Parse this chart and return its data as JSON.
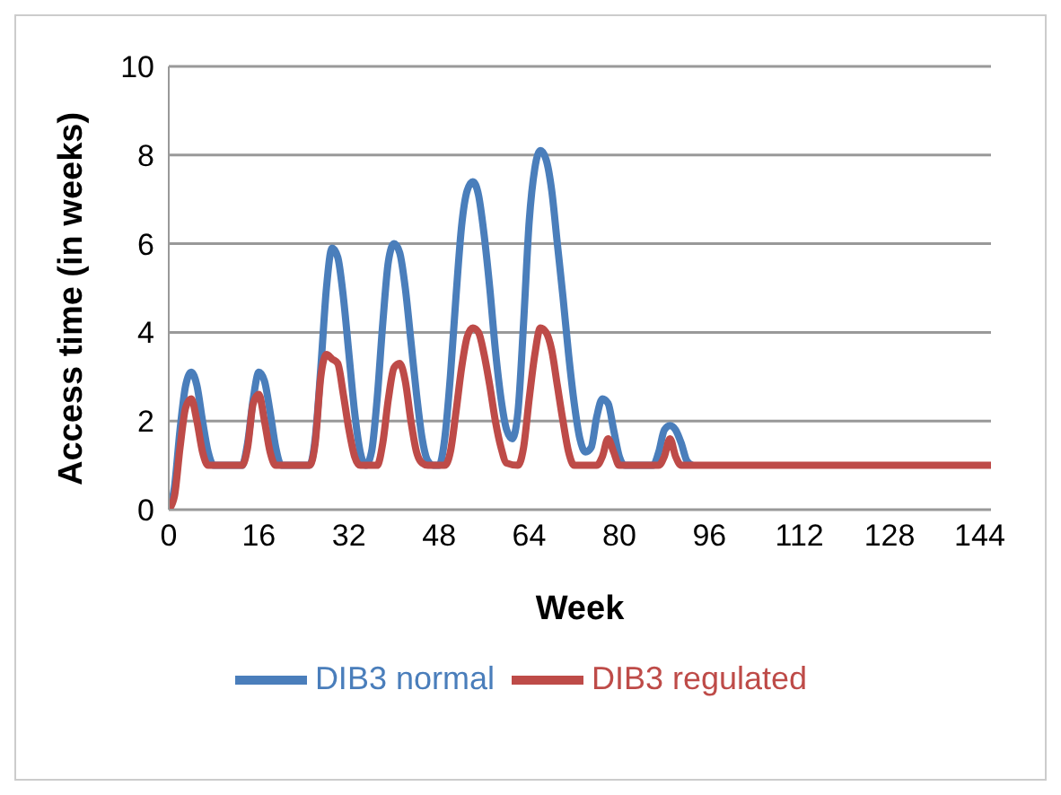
{
  "chart_data": {
    "type": "line",
    "xlabel": "Week",
    "ylabel": "Access time (in weeks)",
    "xlim": [
      0,
      146
    ],
    "xticks": [
      0,
      16,
      32,
      48,
      64,
      80,
      96,
      112,
      128,
      144
    ],
    "ylim": [
      0,
      10
    ],
    "yticks": [
      0,
      2,
      4,
      6,
      8,
      10
    ],
    "grid": "y",
    "legend": "bottom",
    "marker": "none",
    "line_style": "solid",
    "series": [
      {
        "name": "DIB3 normal",
        "color": "#4a7ebb",
        "x": [
          0,
          1,
          2,
          3,
          4,
          5,
          6,
          7,
          8,
          13,
          14,
          15,
          16,
          17,
          18,
          19,
          20,
          25,
          26,
          27,
          28,
          29,
          30,
          31,
          32,
          33,
          34,
          35,
          36,
          37,
          38,
          39,
          40,
          41,
          42,
          43,
          44,
          45,
          46,
          47,
          48,
          49,
          50,
          51,
          52,
          53,
          54,
          55,
          56,
          57,
          58,
          59,
          60,
          61,
          62,
          63,
          64,
          65,
          66,
          67,
          68,
          69,
          70,
          71,
          72,
          73,
          74,
          75,
          76,
          77,
          78,
          79,
          80,
          81,
          82,
          86,
          87,
          88,
          89,
          90,
          91,
          92,
          93
        ],
        "values": [
          0,
          0.5,
          1.8,
          2.8,
          3.1,
          2.8,
          2.0,
          1.3,
          1,
          1,
          1.5,
          2.5,
          3.1,
          2.9,
          2.2,
          1.4,
          1,
          1,
          1.6,
          3.2,
          5.0,
          5.9,
          5.7,
          4.8,
          3.5,
          2.2,
          1.3,
          1,
          1.3,
          2.5,
          4.2,
          5.6,
          6.0,
          5.8,
          5.0,
          3.8,
          2.6,
          1.6,
          1.1,
          1,
          1,
          1.6,
          3.0,
          4.8,
          6.4,
          7.2,
          7.4,
          7.1,
          6.2,
          5.0,
          3.6,
          2.5,
          1.8,
          1.6,
          2.2,
          4.2,
          6.5,
          7.7,
          8.1,
          7.9,
          7.2,
          6.0,
          4.8,
          3.5,
          2.4,
          1.6,
          1.3,
          1.4,
          2.1,
          2.5,
          2.4,
          1.8,
          1.2,
          1,
          1,
          1,
          1.3,
          1.8,
          1.9,
          1.8,
          1.5,
          1.1,
          1
        ]
      },
      {
        "name": "DIB3 regulated",
        "color": "#be4b48",
        "x": [
          0,
          1,
          2,
          3,
          4,
          5,
          6,
          7,
          13,
          14,
          15,
          16,
          17,
          18,
          19,
          25,
          26,
          27,
          28,
          29,
          30,
          31,
          32,
          33,
          34,
          37,
          38,
          39,
          40,
          41,
          42,
          43,
          44,
          45,
          46,
          49,
          50,
          51,
          52,
          53,
          54,
          55,
          56,
          57,
          58,
          59,
          60,
          62,
          63,
          64,
          65,
          66,
          67,
          68,
          69,
          70,
          71,
          72,
          76,
          77,
          78,
          79,
          80,
          87,
          88,
          89,
          90,
          91,
          146
        ],
        "values": [
          0,
          0.3,
          1.4,
          2.3,
          2.5,
          2.0,
          1.3,
          1,
          1,
          1.4,
          2.4,
          2.6,
          2.0,
          1.3,
          1,
          1,
          1.5,
          3.0,
          3.5,
          3.4,
          3.3,
          2.6,
          1.8,
          1.2,
          1,
          1,
          1.5,
          2.5,
          3.2,
          3.3,
          2.9,
          2.0,
          1.3,
          1.05,
          1,
          1,
          1.3,
          2.2,
          3.2,
          3.9,
          4.1,
          4.0,
          3.5,
          2.8,
          2.0,
          1.4,
          1.05,
          1,
          1.4,
          2.5,
          3.5,
          4.1,
          4.0,
          3.6,
          2.8,
          2.0,
          1.3,
          1,
          1,
          1.2,
          1.6,
          1.3,
          1,
          1,
          1.2,
          1.6,
          1.2,
          1,
          1
        ]
      }
    ]
  }
}
